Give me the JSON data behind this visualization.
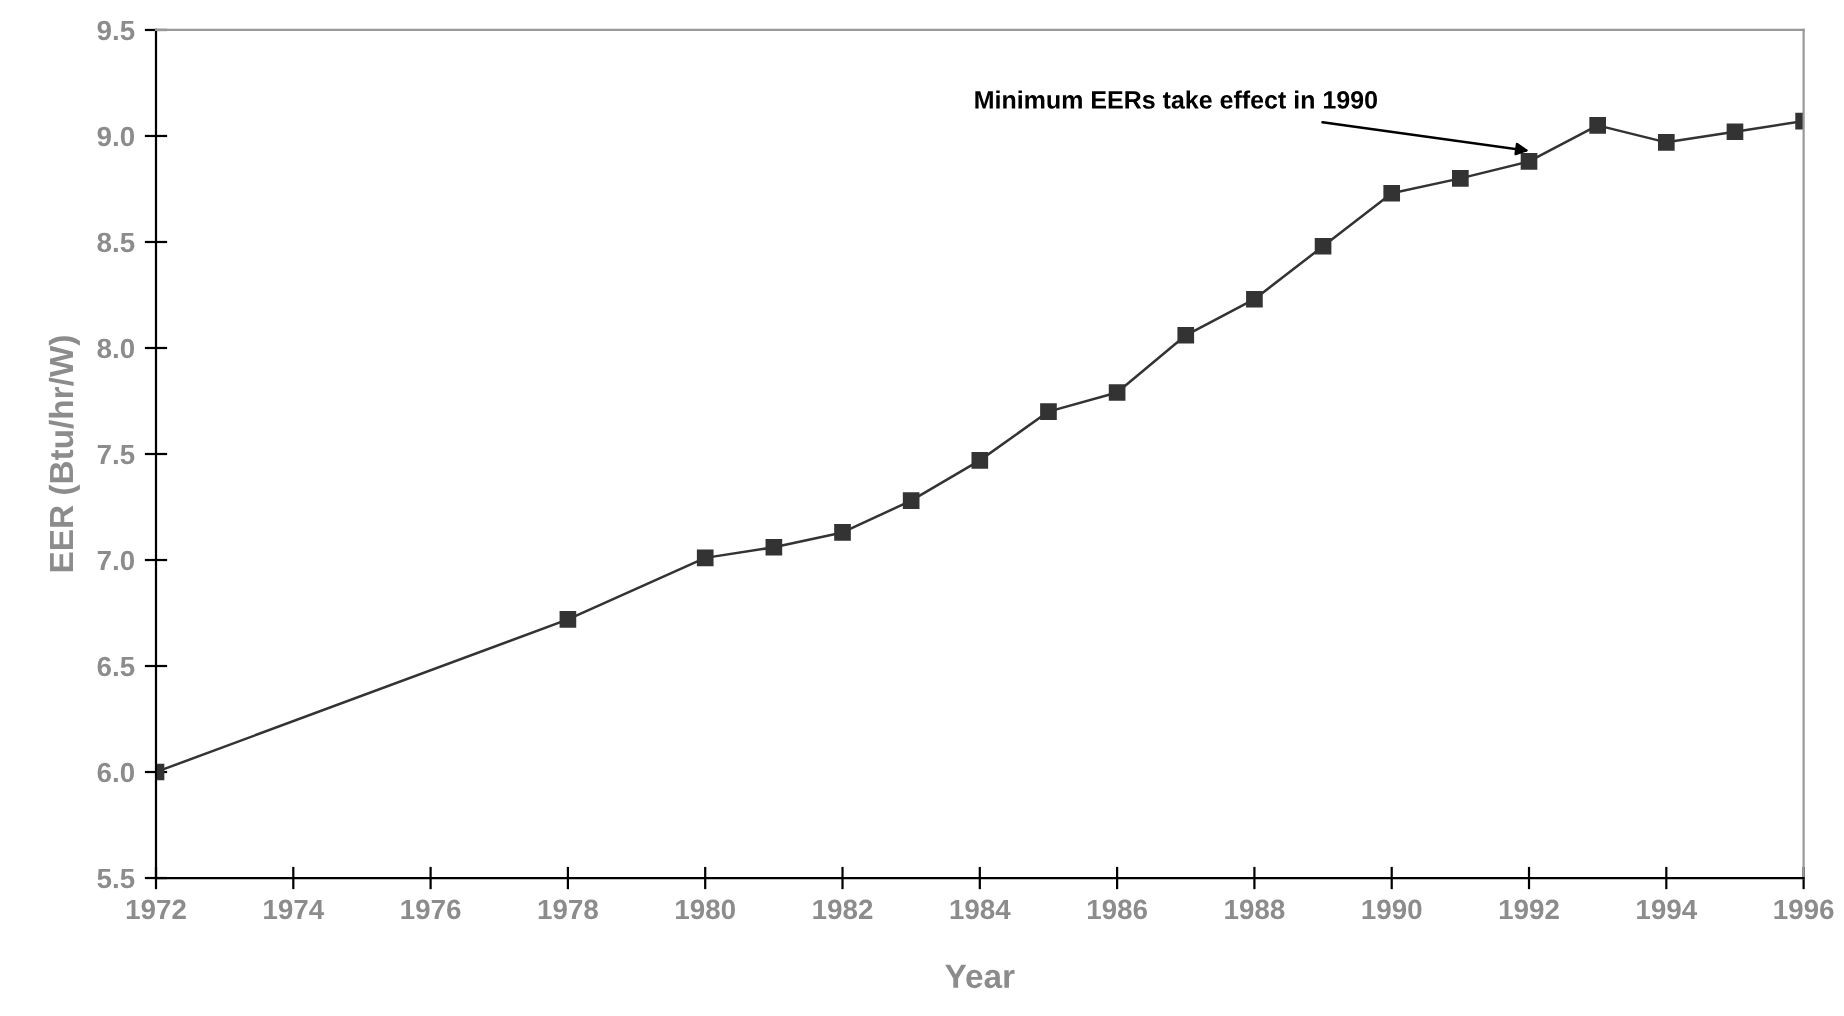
{
  "chart_data": {
    "type": "line",
    "xlabel": "Year",
    "ylabel": "EER (Btu/hr/W)",
    "x": [
      1972,
      1978,
      1980,
      1981,
      1982,
      1983,
      1984,
      1985,
      1986,
      1987,
      1988,
      1989,
      1990,
      1991,
      1992,
      1993,
      1994,
      1995,
      1996
    ],
    "series": [
      {
        "color": "#333333",
        "values": [
          6.0,
          6.72,
          7.01,
          7.06,
          7.13,
          7.28,
          7.47,
          7.7,
          7.79,
          8.06,
          8.23,
          8.48,
          8.73,
          8.8,
          8.88,
          9.05,
          8.97,
          9.02,
          9.07
        ]
      }
    ],
    "xlim": [
      1972,
      1996
    ],
    "xticks": [
      1972,
      1974,
      1976,
      1978,
      1980,
      1982,
      1984,
      1986,
      1988,
      1990,
      1992,
      1994,
      1996
    ],
    "ylim": [
      5.5,
      9.5
    ],
    "yticks": [
      5.5,
      {
        "value": 6,
        "label": "6.0"
      },
      6.5,
      {
        "value": 7,
        "label": "7.0"
      },
      7.5,
      {
        "value": 8,
        "label": "8.0"
      },
      8.5,
      {
        "value": 9,
        "label": "9.0"
      },
      9.5
    ],
    "annotations": [
      {
        "text": "Minimum EERs take effect in 1990",
        "x": 1992,
        "y": 8.88
      }
    ],
    "marker": "square",
    "line_style": "solid",
    "grid": false,
    "legend": false
  }
}
